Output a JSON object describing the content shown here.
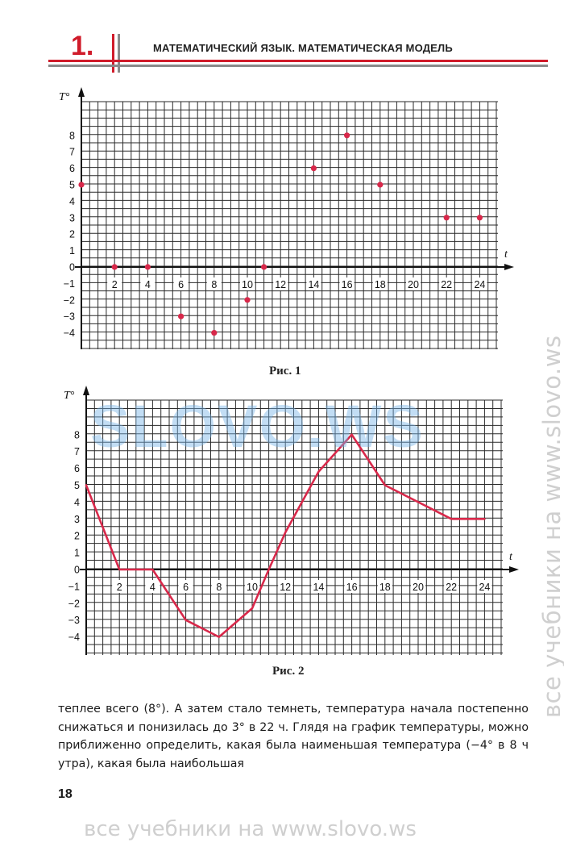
{
  "header": {
    "chapter": "1.",
    "title": "МАТЕМАТИЧЕСКИЙ ЯЗЫК. МАТЕМАТИЧЕСКАЯ МОДЕЛЬ"
  },
  "chart_data": [
    {
      "type": "scatter",
      "caption": "Рис. 1",
      "ylabel": "T°",
      "xlabel": "t",
      "xlim": [
        0,
        26
      ],
      "ylim": [
        -5,
        10
      ],
      "x_ticks": [
        "2",
        "4",
        "6",
        "8",
        "10",
        "12",
        "14",
        "16",
        "18",
        "20",
        "22",
        "24"
      ],
      "y_ticks": [
        "8",
        "7",
        "6",
        "5",
        "4",
        "3",
        "2",
        "1",
        "0",
        "−1",
        "−2",
        "−3",
        "−4"
      ],
      "grid": true,
      "color": "#d8284a",
      "x": [
        0,
        2,
        4,
        6,
        8,
        10,
        11,
        14,
        16,
        18,
        22,
        24
      ],
      "y": [
        5,
        0,
        0,
        -3,
        -4,
        -2,
        0,
        6,
        8,
        5,
        3,
        3
      ]
    },
    {
      "type": "line",
      "caption": "Рис. 2",
      "ylabel": "T°",
      "xlabel": "t",
      "xlim": [
        0,
        26
      ],
      "ylim": [
        -5,
        10
      ],
      "x_ticks": [
        "2",
        "4",
        "6",
        "8",
        "10",
        "12",
        "14",
        "16",
        "18",
        "20",
        "22",
        "24"
      ],
      "y_ticks": [
        "8",
        "7",
        "6",
        "5",
        "4",
        "3",
        "2",
        "1",
        "0",
        "−1",
        "−2",
        "−3",
        "−4"
      ],
      "grid": true,
      "color": "#d8284a",
      "x": [
        0,
        2,
        4,
        6,
        8,
        10,
        11,
        12,
        14,
        16,
        18,
        20,
        22,
        24
      ],
      "y": [
        5,
        0,
        0,
        -3,
        -4,
        -2.3,
        0,
        2.2,
        5.8,
        8,
        5,
        4,
        3,
        3
      ]
    }
  ],
  "paragraph": "теплее всего (8°). А затем стало темнеть, температура начала постепенно снижаться и понизилась до 3° в 22 ч. Глядя на график температуры, можно приближенно определить, какая была наименьшая температура (−4° в 8 ч утра), какая была наибольшая",
  "page_number": "18",
  "watermarks": {
    "logo": "SLOVO.WS",
    "side": "все учебники на www.slovo.ws",
    "bottom": "все учебники на www.slovo.ws"
  }
}
